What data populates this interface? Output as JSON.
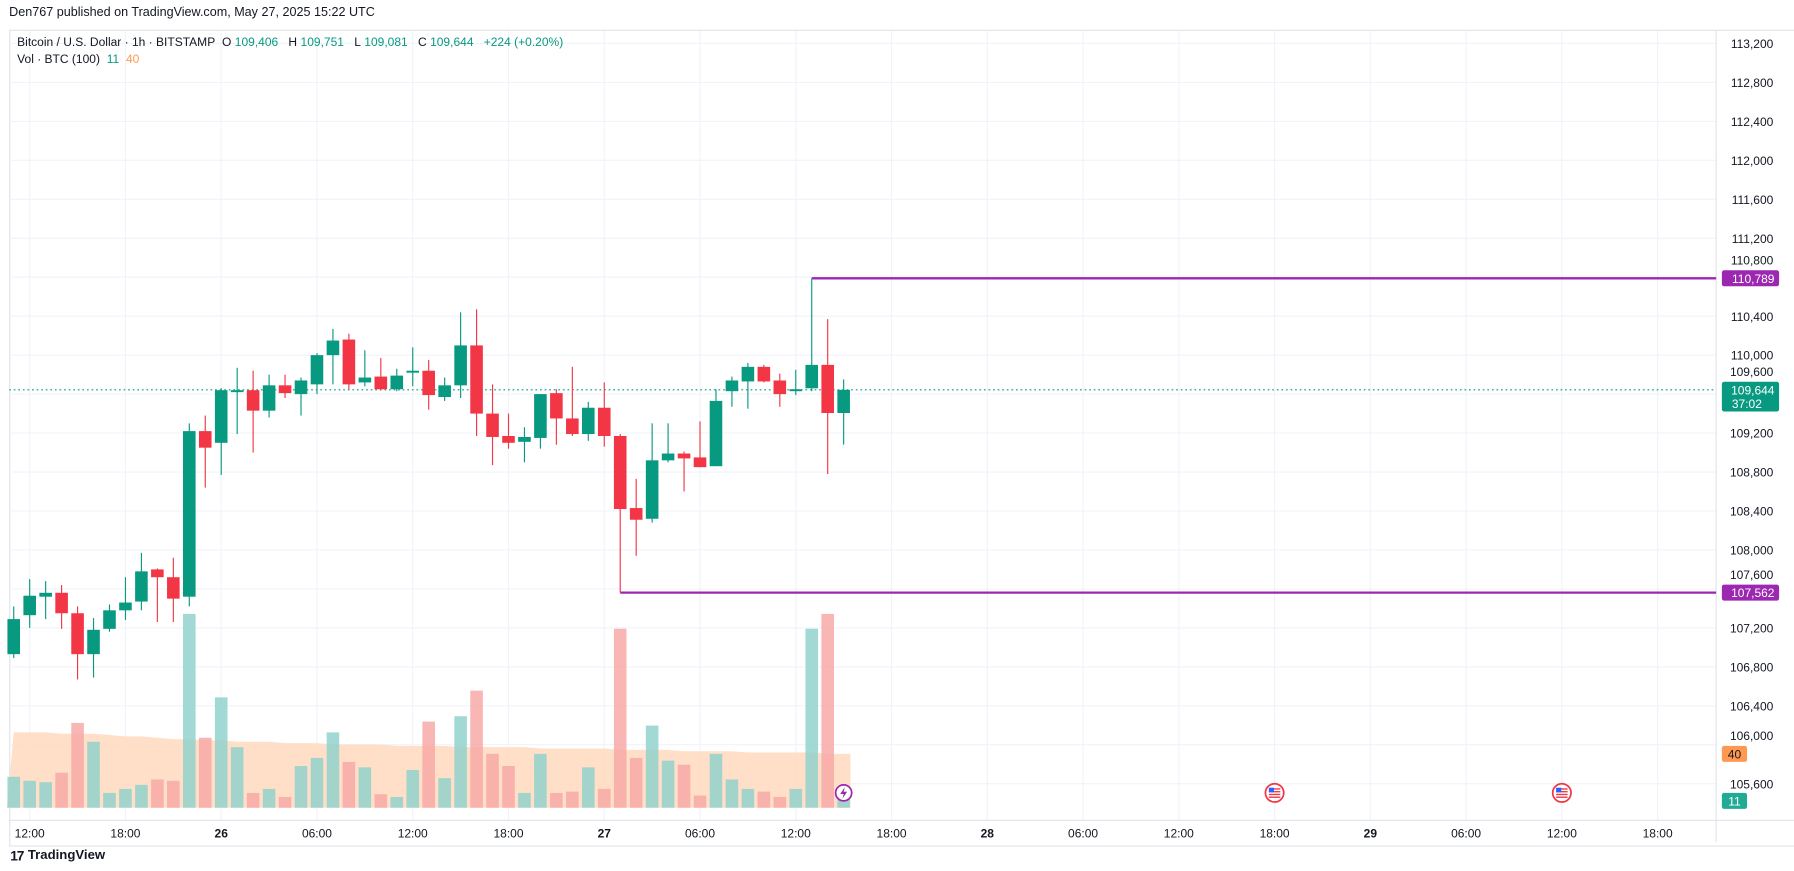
{
  "publisher_line": "Den767 published on TradingView.com, May 27, 2025 15:22 UTC",
  "legend": {
    "symbol": "Bitcoin / U.S. Dollar · 1h · BITSTAMP",
    "o_label": "O",
    "o": "109,406",
    "h_label": "H",
    "h": "109,751",
    "l_label": "L",
    "l": "109,081",
    "c_label": "C",
    "c": "109,644",
    "change": "+224 (+0.20%)",
    "vol_label": "Vol · BTC (100)",
    "vol_value": "11",
    "vol_ma": "40"
  },
  "footer": {
    "logo_mark": "17",
    "brand": "TradingView"
  },
  "colors": {
    "up": "#089981",
    "down": "#f23645",
    "up_vol": "#92d2cc",
    "down_vol": "#f7a9a7",
    "ma_fill": "#ffd9bd",
    "ma_line": "#ff9850",
    "level": "#9c27b0",
    "grid": "#f0f3fa"
  },
  "chart_data": {
    "type": "candlestick",
    "timeframe": "1h",
    "ylim": [
      105400,
      113400
    ],
    "y_ticks": [
      "113,200",
      "112,800",
      "112,400",
      "112,000",
      "111,600",
      "111,200",
      "110,800",
      "110,400",
      "110,000",
      "109,600",
      "109,200",
      "108,800",
      "108,400",
      "108,000",
      "107,600",
      "107,200",
      "106,800",
      "106,400",
      "106,000",
      "105,600"
    ],
    "y_tick_values": [
      113200,
      112800,
      112400,
      112000,
      111600,
      111200,
      110800,
      110400,
      110000,
      109600,
      109200,
      108800,
      108400,
      108000,
      107600,
      107200,
      106800,
      106400,
      106000,
      105600
    ],
    "x_ticks": [
      {
        "label": "12:00",
        "bar": 1
      },
      {
        "label": "18:00",
        "bar": 7
      },
      {
        "label": "26",
        "bar": 13,
        "bold": true
      },
      {
        "label": "06:00",
        "bar": 19
      },
      {
        "label": "12:00",
        "bar": 25
      },
      {
        "label": "18:00",
        "bar": 31
      },
      {
        "label": "27",
        "bar": 37,
        "bold": true
      },
      {
        "label": "06:00",
        "bar": 43
      },
      {
        "label": "12:00",
        "bar": 49
      },
      {
        "label": "18:00",
        "bar": 55
      },
      {
        "label": "28",
        "bar": 61,
        "bold": true
      },
      {
        "label": "06:00",
        "bar": 67
      },
      {
        "label": "12:00",
        "bar": 73
      },
      {
        "label": "18:00",
        "bar": 79
      },
      {
        "label": "29",
        "bar": 85,
        "bold": true
      },
      {
        "label": "06:00",
        "bar": 91
      },
      {
        "label": "12:00",
        "bar": 97
      },
      {
        "label": "18:00",
        "bar": 103
      }
    ],
    "ohlc": [
      [
        106930,
        107420,
        106890,
        107290
      ],
      [
        107330,
        107700,
        107200,
        107530
      ],
      [
        107520,
        107680,
        107290,
        107560
      ],
      [
        107560,
        107640,
        107190,
        107350
      ],
      [
        107350,
        107420,
        106670,
        106930
      ],
      [
        106930,
        107300,
        106690,
        107180
      ],
      [
        107190,
        107440,
        107160,
        107380
      ],
      [
        107380,
        107720,
        107280,
        107460
      ],
      [
        107470,
        107970,
        107380,
        107780
      ],
      [
        107800,
        107810,
        107260,
        107720
      ],
      [
        107720,
        107920,
        107260,
        107500
      ],
      [
        107520,
        109300,
        107420,
        109220
      ],
      [
        109220,
        109380,
        108640,
        109050
      ],
      [
        109100,
        109660,
        108770,
        109640
      ],
      [
        109620,
        109870,
        109190,
        109640
      ],
      [
        109640,
        109840,
        109000,
        109430
      ],
      [
        109430,
        109800,
        109360,
        109690
      ],
      [
        109690,
        109800,
        109560,
        109610
      ],
      [
        109600,
        109770,
        109380,
        109740
      ],
      [
        109700,
        110020,
        109600,
        110000
      ],
      [
        110000,
        110270,
        109700,
        110150
      ],
      [
        110160,
        110220,
        109650,
        109700
      ],
      [
        109720,
        110050,
        109680,
        109770
      ],
      [
        109780,
        109970,
        109640,
        109650
      ],
      [
        109650,
        109860,
        109630,
        109790
      ],
      [
        109820,
        110080,
        109680,
        109840
      ],
      [
        109840,
        109950,
        109440,
        109590
      ],
      [
        109570,
        109770,
        109530,
        109690
      ],
      [
        109690,
        110440,
        109560,
        110100
      ],
      [
        110100,
        110470,
        109170,
        109400
      ],
      [
        109400,
        109700,
        108870,
        109160
      ],
      [
        109170,
        109400,
        109040,
        109100
      ],
      [
        109110,
        109260,
        108900,
        109160
      ],
      [
        109150,
        109600,
        109040,
        109600
      ],
      [
        109610,
        109650,
        109080,
        109350
      ],
      [
        109350,
        109880,
        109170,
        109190
      ],
      [
        109190,
        109520,
        109120,
        109460
      ],
      [
        109460,
        109720,
        109060,
        109170
      ],
      [
        109170,
        109190,
        107562,
        108420
      ],
      [
        108430,
        108730,
        107940,
        108310
      ],
      [
        108320,
        109300,
        108280,
        108920
      ],
      [
        108920,
        109300,
        108900,
        108990
      ],
      [
        108990,
        109010,
        108600,
        108940
      ],
      [
        108950,
        109320,
        108850,
        108850
      ],
      [
        108860,
        109650,
        108860,
        109530
      ],
      [
        109630,
        109780,
        109470,
        109740
      ],
      [
        109730,
        109920,
        109450,
        109880
      ],
      [
        109880,
        109900,
        109720,
        109730
      ],
      [
        109740,
        109810,
        109470,
        109600
      ],
      [
        109630,
        109850,
        109590,
        109650
      ],
      [
        109660,
        110789,
        109630,
        109900
      ],
      [
        109900,
        110370,
        108780,
        109406
      ],
      [
        109406,
        109751,
        109081,
        109644
      ]
    ],
    "volume": [
      23,
      20,
      19,
      26,
      63,
      49,
      11,
      14,
      17,
      21,
      20,
      144,
      52,
      82,
      45,
      11,
      14,
      8,
      31,
      37,
      56,
      34,
      30,
      10,
      8,
      28,
      64,
      22,
      68,
      87,
      40,
      31,
      11,
      40,
      11,
      12,
      30,
      14,
      133,
      37,
      61,
      35,
      32,
      9,
      40,
      21,
      14,
      12,
      8,
      14,
      133,
      144,
      11
    ],
    "volume_ma": [
      56,
      56,
      56,
      55,
      55,
      55,
      54,
      53,
      53,
      52,
      51,
      51,
      50,
      50,
      49,
      49,
      49,
      48,
      48,
      48,
      47,
      47,
      47,
      47,
      46,
      46,
      46,
      46,
      45,
      45,
      45,
      45,
      45,
      44,
      44,
      44,
      44,
      44,
      43,
      43,
      43,
      43,
      42,
      42,
      42,
      42,
      41,
      41,
      41,
      41,
      41,
      40,
      40
    ],
    "levels": [
      {
        "price": 110789,
        "label": "110,789",
        "from_bar": 50
      },
      {
        "price": 107562,
        "label": "107,562",
        "from_bar": 38
      }
    ],
    "last_price": {
      "price": 109644,
      "label": "109,644",
      "countdown": "37:02"
    },
    "volume_tags": {
      "ma": "40",
      "vol": "11"
    },
    "events": [
      {
        "bar": 52,
        "icon": "lightning-icon"
      },
      {
        "bar": 79,
        "icon": "us-flag-icon"
      },
      {
        "bar": 97,
        "icon": "us-flag-icon"
      }
    ]
  }
}
